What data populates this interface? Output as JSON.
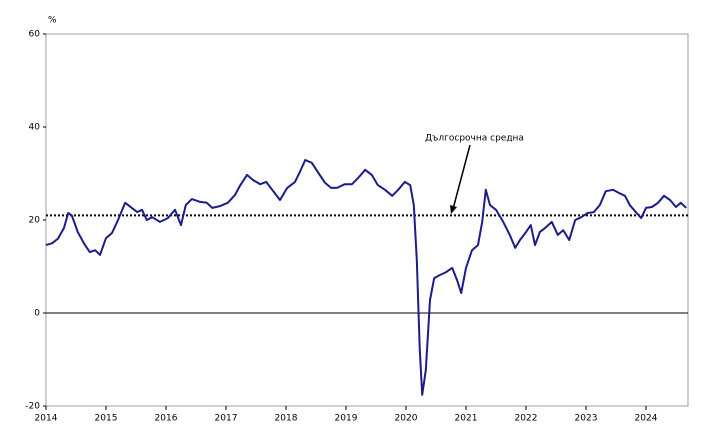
{
  "chart_data": {
    "type": "line",
    "y_unit": "%",
    "annotation": "Дългосрочна средна",
    "average": 21,
    "x": [
      2014.0,
      2014.1,
      2014.2,
      2014.3,
      2014.37,
      2014.43,
      2014.53,
      2014.65,
      2014.73,
      2014.82,
      2014.9,
      2015.0,
      2015.1,
      2015.2,
      2015.32,
      2015.43,
      2015.52,
      2015.6,
      2015.68,
      2015.77,
      2015.9,
      2016.03,
      2016.15,
      2016.25,
      2016.33,
      2016.43,
      2016.57,
      2016.68,
      2016.77,
      2016.9,
      2017.03,
      2017.15,
      2017.23,
      2017.35,
      2017.45,
      2017.57,
      2017.67,
      2017.77,
      2017.9,
      2018.02,
      2018.15,
      2018.23,
      2018.32,
      2018.43,
      2018.53,
      2018.65,
      2018.75,
      2018.85,
      2018.98,
      2019.1,
      2019.2,
      2019.32,
      2019.43,
      2019.53,
      2019.65,
      2019.77,
      2019.87,
      2019.98,
      2020.07,
      2020.13,
      2020.18,
      2020.23,
      2020.27,
      2020.33,
      2020.4,
      2020.47,
      2020.57,
      2020.67,
      2020.77,
      2020.85,
      2020.92,
      2021.0,
      2021.1,
      2021.2,
      2021.27,
      2021.33,
      2021.4,
      2021.5,
      2021.62,
      2021.73,
      2021.82,
      2021.9,
      2022.0,
      2022.08,
      2022.15,
      2022.23,
      2022.32,
      2022.43,
      2022.53,
      2022.62,
      2022.72,
      2022.82,
      2022.92,
      2023.03,
      2023.13,
      2023.23,
      2023.33,
      2023.45,
      2023.55,
      2023.65,
      2023.73,
      2023.83,
      2023.92,
      2024.0,
      2024.1,
      2024.2,
      2024.3,
      2024.4,
      2024.5,
      2024.58,
      2024.67
    ],
    "series": [
      {
        "color": "#1c1c8a",
        "values": [
          14.6,
          15,
          16,
          18.3,
          21.5,
          21,
          17.4,
          14.6,
          13.1,
          13.5,
          12.5,
          16.1,
          17.2,
          20,
          23.7,
          22.6,
          21.7,
          22.2,
          20,
          20.6,
          19.6,
          20.4,
          22.2,
          18.9,
          23.2,
          24.5,
          23.9,
          23.7,
          22.6,
          23,
          23.7,
          25.4,
          27.3,
          29.7,
          28.6,
          27.7,
          28.2,
          26.5,
          24.3,
          26.9,
          28.2,
          30.3,
          32.9,
          32.3,
          30.3,
          28,
          26.9,
          26.9,
          27.7,
          27.7,
          29,
          30.8,
          29.7,
          27.5,
          26.5,
          25.2,
          26.5,
          28.2,
          27.5,
          23.2,
          11.4,
          -8,
          -17.6,
          -12.3,
          2.8,
          7.5,
          8.2,
          8.8,
          9.7,
          7.1,
          4.3,
          9.7,
          13.5,
          14.6,
          19.6,
          26.5,
          23.2,
          22.2,
          19.6,
          16.8,
          14,
          15.7,
          17.4,
          18.9,
          14.6,
          17.4,
          18.3,
          19.6,
          16.8,
          17.8,
          15.7,
          20,
          20.6,
          21.5,
          21.7,
          23.2,
          26.2,
          26.5,
          25.8,
          25.2,
          23.2,
          21.7,
          20.4,
          22.6,
          22.8,
          23.7,
          25.2,
          24.3,
          22.8,
          23.7,
          22.6
        ]
      }
    ],
    "xlim": [
      2014,
      2024.7
    ],
    "xticks": [
      2014,
      2015,
      2016,
      2017,
      2018,
      2019,
      2020,
      2021,
      2022,
      2023,
      2024
    ],
    "ylim": [
      -20,
      60
    ],
    "yticks": [
      -20,
      0,
      20,
      40,
      60
    ]
  }
}
